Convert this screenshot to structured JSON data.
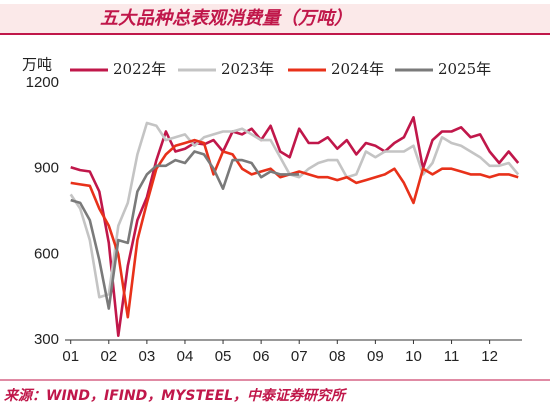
{
  "chart_data": {
    "type": "line",
    "title": "五大品种总表观消费量（万吨）",
    "y_label": "万吨",
    "source": "来源：WIND，IFIND，MYSTEEL，中泰证券研究所",
    "x": [
      1,
      1.25,
      1.5,
      1.75,
      2,
      2.25,
      2.5,
      2.75,
      3,
      3.25,
      3.5,
      3.75,
      4,
      4.25,
      4.5,
      4.75,
      5,
      5.25,
      5.5,
      5.75,
      6,
      6.25,
      6.5,
      6.75,
      7,
      7.25,
      7.5,
      7.75,
      8,
      8.25,
      8.5,
      8.75,
      9,
      9.25,
      9.5,
      9.75,
      10,
      10.25,
      10.5,
      10.75,
      11,
      11.25,
      11.5,
      11.75,
      12,
      12.25,
      12.5,
      12.75
    ],
    "xlim": [
      0.85,
      12.85
    ],
    "xticks": [
      {
        "value": 1,
        "label": "01"
      },
      {
        "value": 2,
        "label": "02"
      },
      {
        "value": 3,
        "label": "03"
      },
      {
        "value": 4,
        "label": "04"
      },
      {
        "value": 5,
        "label": "05"
      },
      {
        "value": 6,
        "label": "06"
      },
      {
        "value": 7,
        "label": "07"
      },
      {
        "value": 8,
        "label": "08"
      },
      {
        "value": 9,
        "label": "09"
      },
      {
        "value": 10,
        "label": "10"
      },
      {
        "value": 11,
        "label": "11"
      },
      {
        "value": 12,
        "label": "12"
      }
    ],
    "ylim": [
      300,
      1200
    ],
    "yticks": [
      300,
      600,
      900,
      1200
    ],
    "grid": false,
    "legend": "top",
    "series": [
      {
        "name": "2022年",
        "color": "#c0174a",
        "values": [
          905,
          895,
          890,
          820,
          640,
          315,
          560,
          720,
          800,
          930,
          1030,
          960,
          970,
          990,
          985,
          1000,
          960,
          1030,
          1020,
          1040,
          1000,
          1050,
          960,
          940,
          1040,
          990,
          990,
          1010,
          970,
          1000,
          950,
          990,
          980,
          960,
          990,
          1010,
          1080,
          900,
          1000,
          1030,
          1030,
          1045,
          1010,
          1020,
          960,
          920,
          960,
          920
        ]
      },
      {
        "name": "2023年",
        "color": "#c4c4c4",
        "values": [
          810,
          760,
          650,
          450,
          460,
          700,
          780,
          950,
          1060,
          1050,
          1000,
          1010,
          1020,
          980,
          1010,
          1020,
          1030,
          1030,
          1040,
          1020,
          1000,
          1000,
          940,
          880,
          870,
          900,
          920,
          930,
          930,
          870,
          880,
          960,
          940,
          960,
          960,
          960,
          980,
          880,
          920,
          1010,
          990,
          980,
          960,
          940,
          910,
          910,
          920,
          880
        ]
      },
      {
        "name": "2024年",
        "color": "#e8311a",
        "values": [
          850,
          845,
          840,
          760,
          700,
          600,
          380,
          650,
          780,
          900,
          950,
          980,
          990,
          1000,
          990,
          880,
          960,
          950,
          900,
          880,
          890,
          900,
          870,
          880,
          890,
          880,
          870,
          870,
          860,
          870,
          850,
          860,
          870,
          880,
          900,
          850,
          780,
          900,
          880,
          900,
          900,
          890,
          880,
          880,
          870,
          880,
          880,
          870
        ]
      },
      {
        "name": "2025年",
        "color": "#7a7a7a",
        "values": [
          790,
          780,
          720,
          580,
          410,
          650,
          640,
          820,
          880,
          910,
          910,
          930,
          920,
          960,
          950,
          900,
          830,
          930,
          930,
          920,
          870,
          890,
          880,
          880,
          880,
          null,
          null,
          null,
          null,
          null,
          null,
          null,
          null,
          null,
          null,
          null,
          null,
          null,
          null,
          null,
          null,
          null,
          null,
          null,
          null,
          null,
          null,
          null
        ]
      }
    ]
  }
}
